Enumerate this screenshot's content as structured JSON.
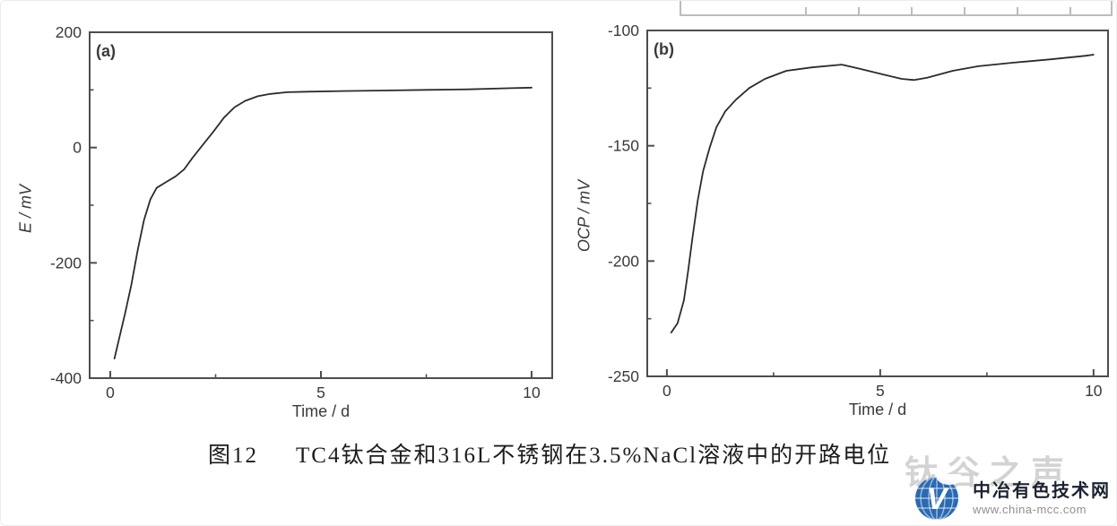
{
  "colors": {
    "curve": "#2b2b2b",
    "axis": "#4d4d4d",
    "tick_text": "#3a3a3a",
    "cropped_box": "#bcbcbc",
    "logo_blue": "#2a6ab2"
  },
  "figure": {
    "caption_label": "图12",
    "caption_text": "TC4钛合金和316L不锈钢在3.5%NaCl溶液中的开路电位"
  },
  "watermark": {
    "text": "钛谷之声"
  },
  "logo": {
    "letter": "V",
    "site_name": "中冶有色技术网",
    "site_url": "www.china-mcc.com"
  },
  "chart_data": [
    {
      "type": "line",
      "panel_label": "(a)",
      "xlabel": "Time / d",
      "ylabel": "E / mV",
      "xlim": [
        -0.49,
        10.49
      ],
      "ylim": [
        -400,
        200
      ],
      "x_major_ticks": [
        0,
        5,
        10
      ],
      "x_minor_ticks": [
        2.5,
        7.5
      ],
      "y_major_ticks": [
        -400,
        -200,
        0,
        200
      ],
      "y_minor_ticks": [
        -300,
        -100,
        100
      ],
      "grid": false,
      "legend": "none",
      "series": [
        {
          "name": "TC4 titanium alloy OCP",
          "x": [
            0.1,
            0.22,
            0.35,
            0.5,
            0.65,
            0.8,
            0.95,
            1.1,
            1.3,
            1.55,
            1.75,
            1.95,
            2.2,
            2.45,
            2.7,
            2.95,
            3.2,
            3.5,
            3.8,
            4.2,
            4.7,
            5.5,
            6.5,
            7.5,
            8.5,
            9.5,
            10.0
          ],
          "y": [
            -366,
            -328,
            -288,
            -238,
            -178,
            -126,
            -90,
            -70,
            -61,
            -50,
            -38,
            -18,
            5,
            28,
            52,
            70,
            81,
            89,
            93,
            96,
            97,
            98,
            99,
            100,
            101,
            103,
            104
          ]
        }
      ]
    },
    {
      "type": "line",
      "panel_label": "(b)",
      "xlabel": "Time / d",
      "ylabel": "OCP / mV",
      "xlim": [
        -0.46,
        10.34
      ],
      "ylim": [
        -250,
        -100
      ],
      "x_major_ticks": [
        0,
        5,
        10
      ],
      "x_minor_ticks": [
        2.5,
        7.5
      ],
      "y_major_ticks": [
        -250,
        -200,
        -150,
        -100
      ],
      "y_minor_ticks": [
        -225,
        -175,
        -125
      ],
      "grid": false,
      "legend": "none",
      "series": [
        {
          "name": "316L stainless steel OCP",
          "x": [
            0.1,
            0.25,
            0.4,
            0.5,
            0.6,
            0.72,
            0.85,
            1.0,
            1.16,
            1.37,
            1.62,
            1.93,
            2.3,
            2.8,
            3.4,
            4.1,
            4.5,
            5.05,
            5.5,
            5.8,
            6.1,
            6.7,
            7.3,
            8.1,
            9.0,
            9.8,
            10.0
          ],
          "y": [
            -231,
            -227,
            -217,
            -204,
            -190,
            -174,
            -161,
            -151,
            -142,
            -135,
            -130,
            -125,
            -121,
            -117.5,
            -116,
            -114.8,
            -116.5,
            -119,
            -121,
            -121.5,
            -120.5,
            -117.5,
            -115.5,
            -114,
            -112.5,
            -111,
            -110.5
          ]
        }
      ]
    }
  ]
}
